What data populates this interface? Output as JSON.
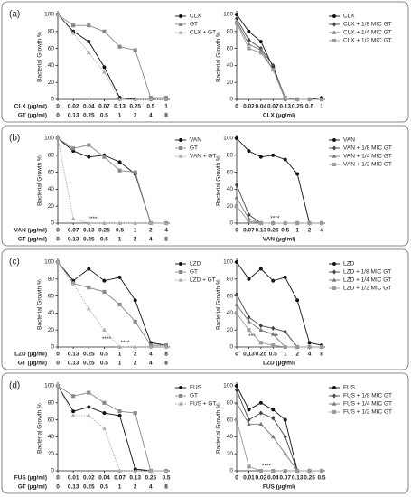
{
  "chart_data": [
    {
      "type": "line",
      "panel_label": "(a)",
      "ylabel": "Bacterial Growth %",
      "ylim": [
        0,
        100
      ],
      "yticks": [
        0,
        20,
        40,
        60,
        80,
        100
      ],
      "xlabel": "CLX (µg/ml)",
      "categories": [
        "0",
        "0.02",
        "0.04",
        "0.07",
        "0.13",
        "0.25",
        "0.5",
        "1"
      ],
      "xlabel2": "GT (µg/ml)",
      "categories2": [
        "0",
        "0.13",
        "0.25",
        "0.5",
        "1",
        "2",
        "4",
        "8"
      ],
      "series": [
        {
          "name": "CLX",
          "color": "#111111",
          "marker": "circle",
          "values": [
            100,
            80,
            68,
            38,
            2,
            0,
            0,
            0
          ]
        },
        {
          "name": "GT",
          "color": "#888888",
          "marker": "square",
          "values": [
            100,
            87,
            87,
            80,
            62,
            58,
            2,
            2
          ]
        },
        {
          "name": "CLX + GT",
          "color": "#aaaaaa",
          "marker": "triangle",
          "dashed": true,
          "values": [
            100,
            78,
            55,
            32,
            0,
            0,
            0,
            0
          ]
        }
      ]
    },
    {
      "type": "line",
      "ylabel": "Bacterial Growth %",
      "ylim": [
        0,
        100
      ],
      "yticks": [
        0,
        20,
        40,
        60,
        80,
        100
      ],
      "xlabel": "CLX (µg/ml)",
      "categories": [
        "0",
        "0.02",
        "0.04",
        "0.07",
        "0.13",
        "0.25",
        "0.5",
        "1"
      ],
      "series": [
        {
          "name": "CLX",
          "color": "#111111",
          "marker": "circle",
          "values": [
            100,
            80,
            68,
            38,
            2,
            0,
            0,
            2
          ]
        },
        {
          "name": "CLX + 1/8 MIC GT",
          "color": "#444444",
          "marker": "diamond",
          "values": [
            95,
            70,
            60,
            40,
            0,
            0,
            0,
            0
          ]
        },
        {
          "name": "CLX + 1/4 MIC GT",
          "color": "#777777",
          "marker": "triangle",
          "values": [
            92,
            65,
            58,
            35,
            0,
            0,
            0,
            0
          ]
        },
        {
          "name": "CLX + 1/2 MIC GT",
          "color": "#999999",
          "marker": "square",
          "values": [
            90,
            60,
            55,
            35,
            2,
            0,
            0,
            0
          ]
        }
      ]
    },
    {
      "type": "line",
      "panel_label": "(b)",
      "ylabel": "Bacterial Growth %",
      "ylim": [
        0,
        100
      ],
      "yticks": [
        0,
        20,
        40,
        60,
        80,
        100
      ],
      "xlabel": "VAN (µg/ml)",
      "categories": [
        "0",
        "0.07",
        "0.13",
        "0.25",
        "0.5",
        "1",
        "2",
        "4"
      ],
      "xlabel2": "GT (µg/ml)",
      "categories2": [
        "0",
        "0.13",
        "0.25",
        "0.5",
        "1",
        "2",
        "4",
        "8"
      ],
      "annotations": [
        "****"
      ],
      "series": [
        {
          "name": "VAN",
          "color": "#111111",
          "marker": "circle",
          "values": [
            100,
            85,
            78,
            80,
            72,
            58,
            0,
            0
          ]
        },
        {
          "name": "GT",
          "color": "#888888",
          "marker": "square",
          "values": [
            100,
            88,
            92,
            78,
            62,
            60,
            0,
            0
          ]
        },
        {
          "name": "VAN + GT",
          "color": "#aaaaaa",
          "marker": "triangle",
          "dashed": true,
          "values": [
            100,
            5,
            0,
            0,
            0,
            0,
            0,
            0
          ]
        }
      ]
    },
    {
      "type": "line",
      "ylabel": "Bacterial Growth %",
      "ylim": [
        0,
        100
      ],
      "yticks": [
        0,
        20,
        40,
        60,
        80,
        100
      ],
      "xlabel": "VAN (µg/ml)",
      "categories": [
        "0",
        "0.07",
        "0.13",
        "0.25",
        "0.5",
        "1",
        "2",
        "4"
      ],
      "annotations": [
        "****"
      ],
      "series": [
        {
          "name": "VAN",
          "color": "#111111",
          "marker": "circle",
          "values": [
            100,
            85,
            78,
            80,
            75,
            58,
            0,
            0
          ]
        },
        {
          "name": "VAN + 1/8 MIC GT",
          "color": "#444444",
          "marker": "diamond",
          "values": [
            45,
            10,
            0,
            0,
            0,
            0,
            0,
            0
          ]
        },
        {
          "name": "VAN + 1/4 MIC GT",
          "color": "#777777",
          "marker": "triangle",
          "values": [
            30,
            5,
            0,
            0,
            0,
            0,
            0,
            0
          ]
        },
        {
          "name": "VAN + 1/2 MIC GT",
          "color": "#999999",
          "marker": "square",
          "values": [
            20,
            2,
            0,
            0,
            0,
            0,
            0,
            0
          ]
        }
      ]
    },
    {
      "type": "line",
      "panel_label": "(c)",
      "ylabel": "Bacterial Growth %",
      "ylim": [
        0,
        100
      ],
      "yticks": [
        0,
        20,
        40,
        60,
        80,
        100
      ],
      "xlabel": "LZD (µg/ml)",
      "categories": [
        "0",
        "0.13",
        "0.25",
        "0.5",
        "1",
        "2",
        "4",
        "8"
      ],
      "xlabel2": "GT (µg/ml)",
      "categories2": [
        "0",
        "0.13",
        "0.25",
        "0.5",
        "1",
        "2",
        "4",
        "8"
      ],
      "annotations": [
        "****",
        "****"
      ],
      "series": [
        {
          "name": "LZD",
          "color": "#111111",
          "marker": "circle",
          "values": [
            100,
            78,
            92,
            78,
            82,
            55,
            5,
            2
          ]
        },
        {
          "name": "GT",
          "color": "#888888",
          "marker": "square",
          "values": [
            100,
            75,
            70,
            65,
            50,
            30,
            2,
            2
          ]
        },
        {
          "name": "LZD + GT",
          "color": "#aaaaaa",
          "marker": "triangle",
          "dashed": true,
          "values": [
            100,
            75,
            45,
            20,
            0,
            0,
            0,
            0
          ]
        }
      ]
    },
    {
      "type": "line",
      "ylabel": "Bacterial Growth %",
      "ylim": [
        0,
        100
      ],
      "yticks": [
        0,
        20,
        40,
        60,
        80,
        100
      ],
      "xlabel": "LZD (µg/ml)",
      "categories": [
        "0",
        "0.13",
        "0.25",
        "0.5",
        "1",
        "2",
        "4",
        "8"
      ],
      "annotations": [
        "***",
        "***"
      ],
      "series": [
        {
          "name": "LZD",
          "color": "#111111",
          "marker": "circle",
          "values": [
            100,
            80,
            92,
            78,
            82,
            55,
            5,
            2
          ]
        },
        {
          "name": "LZD + 1/8 MIC GT",
          "color": "#444444",
          "marker": "diamond",
          "values": [
            62,
            35,
            25,
            22,
            18,
            0,
            0,
            0
          ]
        },
        {
          "name": "LZD + 1/4 MIC GT",
          "color": "#777777",
          "marker": "triangle",
          "values": [
            50,
            30,
            20,
            15,
            0,
            0,
            0,
            0
          ]
        },
        {
          "name": "LZD + 1/2 MIC GT",
          "color": "#999999",
          "marker": "square",
          "values": [
            40,
            20,
            5,
            2,
            0,
            0,
            0,
            0
          ]
        }
      ]
    },
    {
      "type": "line",
      "panel_label": "(d)",
      "ylabel": "Bacterial Growth %",
      "ylim": [
        0,
        100
      ],
      "yticks": [
        0,
        20,
        40,
        60,
        80,
        100
      ],
      "xlabel": "FUS (µg/ml)",
      "categories": [
        "0",
        "0.01",
        "0.02",
        "0.04",
        "0.07",
        "0.13",
        "0.25",
        "0.5"
      ],
      "xlabel2": "GT (µg/ml)",
      "categories2": [
        "0",
        "0.13",
        "0.25",
        "0.5",
        "1",
        "2",
        "4",
        "8"
      ],
      "series": [
        {
          "name": "FUS",
          "color": "#111111",
          "marker": "circle",
          "values": [
            100,
            70,
            75,
            68,
            65,
            2,
            0,
            0
          ]
        },
        {
          "name": "GT",
          "color": "#888888",
          "marker": "square",
          "values": [
            100,
            88,
            92,
            80,
            70,
            68,
            0,
            0
          ]
        },
        {
          "name": "FUS + GT",
          "color": "#aaaaaa",
          "marker": "triangle",
          "dashed": true,
          "values": [
            100,
            65,
            65,
            50,
            0,
            0,
            0,
            0
          ]
        }
      ]
    },
    {
      "type": "line",
      "ylabel": "Bacterial Growth %",
      "ylim": [
        0,
        100
      ],
      "yticks": [
        0,
        20,
        40,
        60,
        80,
        100
      ],
      "xlabel": "FUS (µg/ml)",
      "categories": [
        "0",
        "0.01",
        "0.02",
        "0.04",
        "0.07",
        "0.13",
        "0.25",
        "0.5"
      ],
      "annotations": [
        "****"
      ],
      "series": [
        {
          "name": "FUS",
          "color": "#111111",
          "marker": "circle",
          "values": [
            100,
            72,
            80,
            72,
            60,
            0,
            0,
            0
          ]
        },
        {
          "name": "FUS + 1/8 MIC GT",
          "color": "#444444",
          "marker": "diamond",
          "values": [
            95,
            60,
            68,
            62,
            40,
            0,
            0,
            0
          ]
        },
        {
          "name": "FUS + 1/4 MIC GT",
          "color": "#777777",
          "marker": "triangle",
          "values": [
            80,
            55,
            55,
            40,
            20,
            0,
            0,
            0
          ]
        },
        {
          "name": "FUS + 1/2 MIC GT",
          "color": "#999999",
          "marker": "square",
          "values": [
            60,
            5,
            0,
            0,
            0,
            0,
            0,
            0
          ]
        }
      ]
    }
  ]
}
